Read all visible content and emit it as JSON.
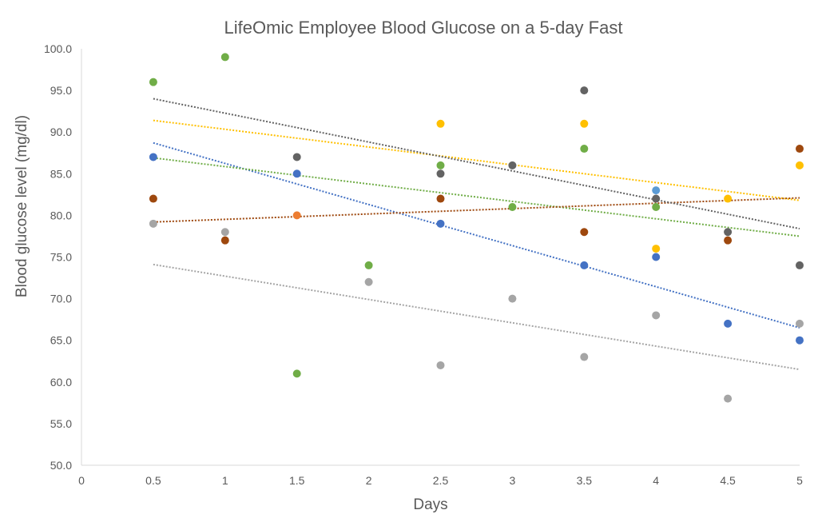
{
  "chart_data": {
    "type": "scatter",
    "title": "LifeOmic Employee Blood Glucose on a 5-day Fast",
    "xlabel": "Days",
    "ylabel": "Blood glucose level (mg/dl)",
    "xlim": [
      0,
      5
    ],
    "ylim": [
      50,
      100
    ],
    "x_ticks": [
      "0",
      "0.5",
      "1",
      "1.5",
      "2",
      "2.5",
      "3",
      "3.5",
      "4",
      "4.5",
      "5"
    ],
    "y_ticks": [
      "50.0",
      "55.0",
      "60.0",
      "65.0",
      "70.0",
      "75.0",
      "80.0",
      "85.0",
      "90.0",
      "95.0",
      "100.0"
    ],
    "grid": false,
    "legend": "none",
    "series": [
      {
        "color": "#4472C4",
        "x": [
          0.5,
          1.5,
          2.5,
          3.5,
          4,
          4.5,
          5
        ],
        "y": [
          87,
          85,
          79,
          74,
          75,
          67,
          65
        ],
        "trendline": {
          "style": "dotted-linear",
          "y_start": 88.7,
          "y_end": 66.5
        }
      },
      {
        "color": "#5B9BD5",
        "x": [
          4
        ],
        "y": [
          83
        ]
      },
      {
        "color": "#ED7D31",
        "x": [
          1.5
        ],
        "y": [
          80
        ]
      },
      {
        "color": "#70AD47",
        "x": [
          0.5,
          1,
          1.5,
          2,
          2.5,
          3,
          3.5,
          4
        ],
        "y": [
          96,
          99,
          61,
          74,
          86,
          81,
          88,
          81
        ],
        "trendline": {
          "style": "dotted-linear",
          "y_start": 86.9,
          "y_end": 77.5
        }
      },
      {
        "color": "#A5A5A5",
        "x": [
          0.5,
          1,
          2,
          2.5,
          3,
          3.5,
          4,
          4.5,
          5
        ],
        "y": [
          79,
          78,
          72,
          62,
          70,
          63,
          68,
          58,
          67
        ],
        "trendline": {
          "style": "dotted-linear",
          "y_start": 74.1,
          "y_end": 61.5
        }
      },
      {
        "color": "#FFC000",
        "x": [
          2.5,
          3.5,
          4,
          4.5,
          5
        ],
        "y": [
          91,
          91,
          76,
          82,
          86
        ],
        "trendline": {
          "style": "dotted-linear",
          "y_start": 91.4,
          "y_end": 81.8
        }
      },
      {
        "color": "#9E480E",
        "x": [
          0.5,
          1,
          2.5,
          3.5,
          4.5,
          5
        ],
        "y": [
          82,
          77,
          82,
          78,
          77,
          88
        ],
        "trendline": {
          "style": "dotted-linear",
          "y_start": 79.2,
          "y_end": 82.1
        }
      },
      {
        "color": "#636363",
        "x": [
          1.5,
          2.5,
          3,
          3.5,
          4,
          4.5,
          5
        ],
        "y": [
          87,
          85,
          86,
          95,
          82,
          78,
          74
        ],
        "trendline": {
          "style": "dotted-linear",
          "y_start": 94.0,
          "y_end": 78.4
        }
      }
    ]
  }
}
